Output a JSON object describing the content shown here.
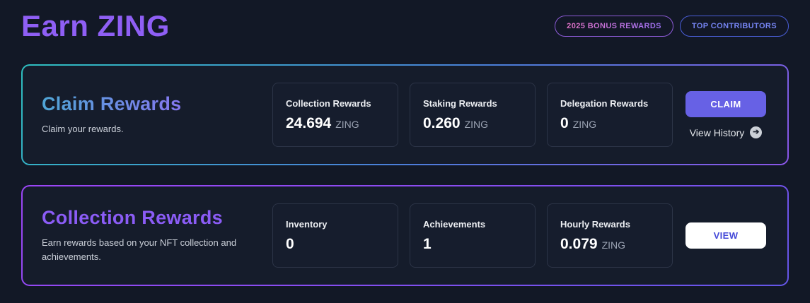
{
  "page": {
    "title": "Earn ZING"
  },
  "header": {
    "buttons": [
      {
        "label": "2025 BONUS REWARDS"
      },
      {
        "label": "TOP CONTRIBUTORS"
      }
    ]
  },
  "cards": [
    {
      "title": "Claim Rewards",
      "subtitle": "Claim your rewards.",
      "stats": [
        {
          "label": "Collection Rewards",
          "value": "24.694",
          "unit": "ZING"
        },
        {
          "label": "Staking Rewards",
          "value": "0.260",
          "unit": "ZING"
        },
        {
          "label": "Delegation Rewards",
          "value": "0",
          "unit": "ZING"
        }
      ],
      "action": {
        "button_label": "CLAIM",
        "link_label": "View History",
        "link_icon": "arrow-right"
      }
    },
    {
      "title": "Collection Rewards",
      "subtitle": "Earn rewards based on your NFT collection and achievements.",
      "stats": [
        {
          "label": "Inventory",
          "value": "0",
          "unit": ""
        },
        {
          "label": "Achievements",
          "value": "1",
          "unit": ""
        },
        {
          "label": "Hourly Rewards",
          "value": "0.079",
          "unit": "ZING"
        }
      ],
      "action": {
        "button_label": "VIEW"
      }
    }
  ],
  "colors": {
    "page_bg": "#121826",
    "card_bg": "#151c2b",
    "page_title_purple": "#8f5ff5",
    "claim_card_border_gradient": [
      "#2ebfc0",
      "#4b7ed9",
      "#8a55e8"
    ],
    "collection_card_border_gradient": [
      "#9b45f5",
      "#6456e8"
    ],
    "claim_title_gradient": [
      "#4fa5d6",
      "#8577f0"
    ],
    "collection_title_purple": "#8b5cf6",
    "claim_button_bg": "#6761e5",
    "view_button_text": "#4348d8",
    "bonus_pill_text_gradient": [
      "#e272c6",
      "#9a70f0"
    ],
    "top_contributors_pill_text": "#7584f2"
  }
}
